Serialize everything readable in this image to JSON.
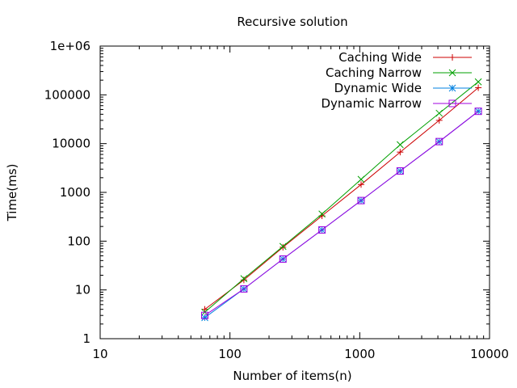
{
  "chart_data": {
    "type": "line",
    "title": "Recursive solution",
    "xlabel": "Number of items(n)",
    "ylabel": "Time(ms)",
    "x_scale": "log",
    "y_scale": "log",
    "xlim": [
      10,
      10000
    ],
    "ylim": [
      1,
      1000000
    ],
    "x_ticks": [
      {
        "value": 10,
        "label": "10"
      },
      {
        "value": 100,
        "label": "100"
      },
      {
        "value": 1000,
        "label": "1000"
      },
      {
        "value": 10000,
        "label": "10000"
      }
    ],
    "y_ticks": [
      {
        "value": 1,
        "label": "1"
      },
      {
        "value": 10,
        "label": "10"
      },
      {
        "value": 100,
        "label": "100"
      },
      {
        "value": 1000,
        "label": "1000"
      },
      {
        "value": 10000,
        "label": "10000"
      },
      {
        "value": 100000,
        "label": "100000"
      },
      {
        "value": 1000000,
        "label": "1e+06"
      }
    ],
    "grid": false,
    "legend_position": "top-right",
    "x": [
      64,
      128,
      256,
      512,
      1024,
      2048,
      4096,
      8192
    ],
    "series": [
      {
        "name": "Caching Wide",
        "color": "#cc0000",
        "marker": "plus",
        "values": [
          4,
          16,
          75,
          330,
          1450,
          6700,
          30000,
          140000
        ]
      },
      {
        "name": "Caching Narrow",
        "color": "#00a000",
        "marker": "cross",
        "values": [
          3.5,
          17,
          78,
          360,
          1850,
          9500,
          42000,
          185000
        ]
      },
      {
        "name": "Dynamic Wide",
        "color": "#0080e0",
        "marker": "star",
        "values": [
          2.7,
          10.5,
          43,
          170,
          680,
          2750,
          11000,
          46000
        ]
      },
      {
        "name": "Dynamic Narrow",
        "color": "#a000e0",
        "marker": "box",
        "values": [
          3,
          10.5,
          43,
          170,
          680,
          2750,
          11000,
          46000
        ]
      }
    ]
  }
}
